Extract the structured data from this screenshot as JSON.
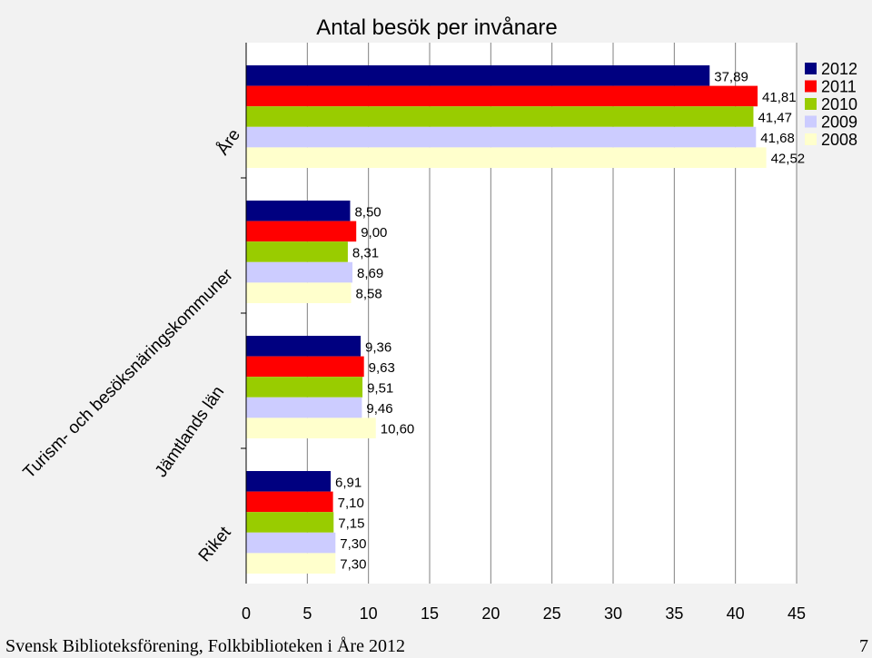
{
  "chart_data": {
    "type": "bar",
    "orientation": "horizontal",
    "title": "Antal besök per invånare",
    "categories": [
      "Åre",
      "Turism- och besöksnäringskommuner",
      "Jämtlands län",
      "Riket"
    ],
    "series": [
      {
        "name": "2012",
        "color": "#000080",
        "values": [
          37.89,
          8.5,
          9.36,
          6.91
        ]
      },
      {
        "name": "2011",
        "color": "#ff0000",
        "values": [
          41.81,
          9.0,
          9.63,
          7.1
        ]
      },
      {
        "name": "2010",
        "color": "#99cc00",
        "values": [
          41.47,
          8.31,
          9.51,
          7.15
        ]
      },
      {
        "name": "2009",
        "color": "#ccccff",
        "values": [
          41.68,
          8.69,
          9.46,
          7.3
        ]
      },
      {
        "name": "2008",
        "color": "#ffffcc",
        "values": [
          42.52,
          8.58,
          10.6,
          7.3
        ]
      }
    ],
    "data_labels": [
      [
        "37,89",
        "41,81",
        "41,47",
        "41,68",
        "42,52"
      ],
      [
        "8,50",
        "9,00",
        "8,31",
        "8,69",
        "8,58"
      ],
      [
        "9,36",
        "9,63",
        "9,51",
        "9,46",
        "10,60"
      ],
      [
        "6,91",
        "7,10",
        "7,15",
        "7,30",
        "7,30"
      ]
    ],
    "xlim": [
      0,
      45
    ],
    "xticks": [
      "0",
      "5",
      "10",
      "15",
      "20",
      "25",
      "30",
      "35",
      "40",
      "45"
    ],
    "grid": "vertical",
    "legend": "top-right",
    "colors": {
      "plot_bg": "#ffffff",
      "page_bg": "#f2f2f2",
      "grid": "#808080"
    }
  },
  "footer": {
    "left": "Svensk Biblioteksförening, Folkbiblioteken i Åre 2012",
    "page_number": "7"
  }
}
